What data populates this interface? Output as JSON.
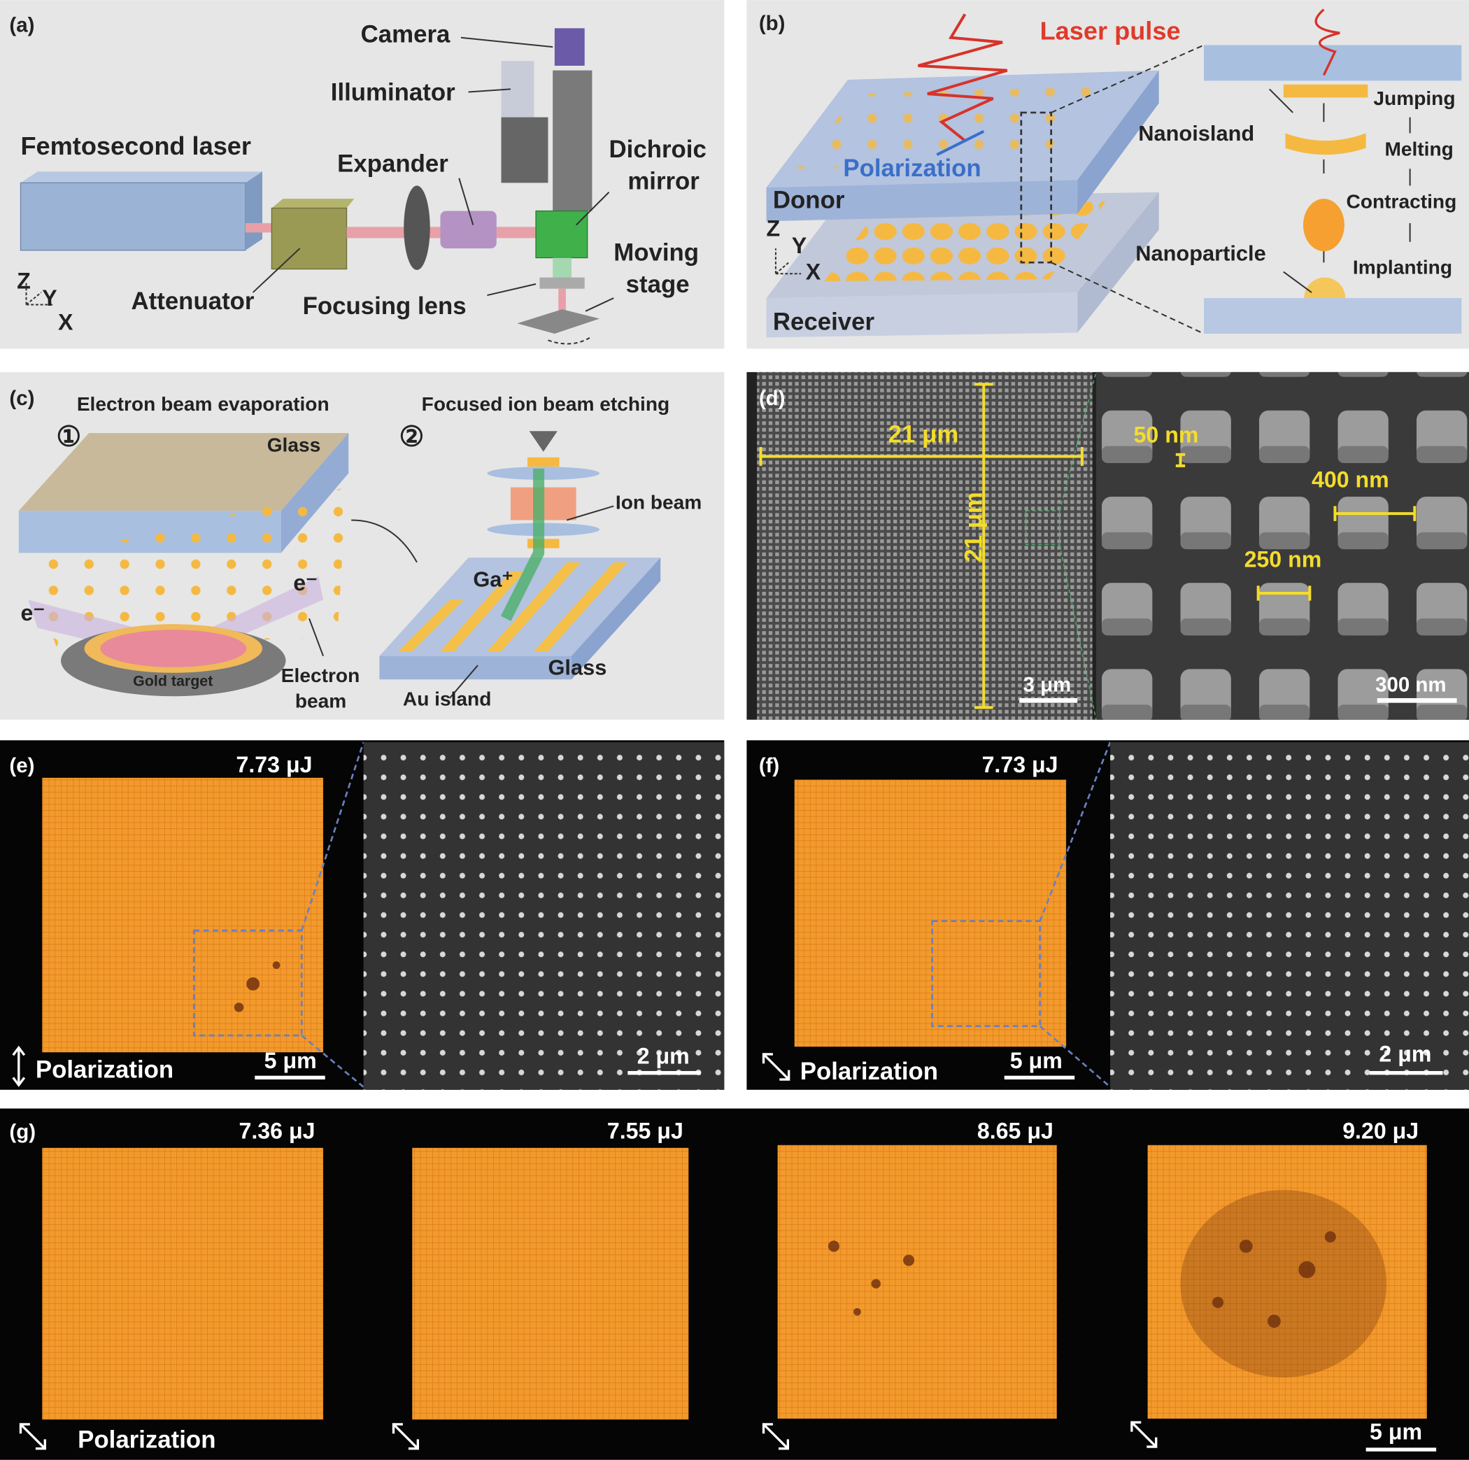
{
  "panel_a": {
    "label": "(a)",
    "femtosecond_laser": "Femtosecond laser",
    "camera": "Camera",
    "illuminator": "Illuminator",
    "expander": "Expander",
    "dichroic_mirror": [
      "Dichroic",
      "mirror"
    ],
    "moving_stage": [
      "Moving",
      "stage"
    ],
    "attenuator": "Attenuator",
    "focusing_lens": "Focusing lens",
    "axes": [
      "Z",
      "Y",
      "X"
    ]
  },
  "panel_b": {
    "label": "(b)",
    "laser_pulse": "Laser pulse",
    "polarization": "Polarization",
    "donor": "Donor",
    "receiver": "Receiver",
    "nanoisland": "Nanoisland",
    "nanoparticle": "Nanoparticle",
    "steps": [
      "Jumping",
      "Melting",
      "Contracting",
      "Implanting"
    ],
    "axes": [
      "Z",
      "Y",
      "X"
    ]
  },
  "panel_c": {
    "label": "(c)",
    "step_1": {
      "number": "①",
      "title": "Electron beam evaporation",
      "glass": "Glass",
      "electron_left": "e⁻",
      "electron_right": "e⁻",
      "gold_target": "Gold target",
      "electron_beam": [
        "Electron",
        "beam"
      ]
    },
    "step_2": {
      "number": "②",
      "title": "Focused ion beam etching",
      "ion_beam": "Ion beam",
      "gallium": "Ga⁺",
      "glass": "Glass",
      "au_island": "Au island"
    }
  },
  "panel_d": {
    "label": "(d)",
    "width": "21 μm",
    "height": "21 μm",
    "scale_left": "3 μm",
    "gap": "50 nm",
    "period": "400 nm",
    "island": "250 nm",
    "scale_right": "300 nm"
  },
  "panel_e": {
    "label": "(e)",
    "energy": "7.73 μJ",
    "polarization": "Polarization",
    "scale_left": "5 μm",
    "scale_right": "2 μm"
  },
  "panel_f": {
    "label": "(f)",
    "energy": "7.73 μJ",
    "polarization": "Polarization",
    "scale_left": "5 μm",
    "scale_right": "2 μm"
  },
  "panel_g": {
    "label": "(g)",
    "energies": [
      "7.36 μJ",
      "7.55 μJ",
      "8.65 μJ",
      "9.20 μJ"
    ],
    "polarization": "Polarization",
    "scale": "5 μm"
  }
}
